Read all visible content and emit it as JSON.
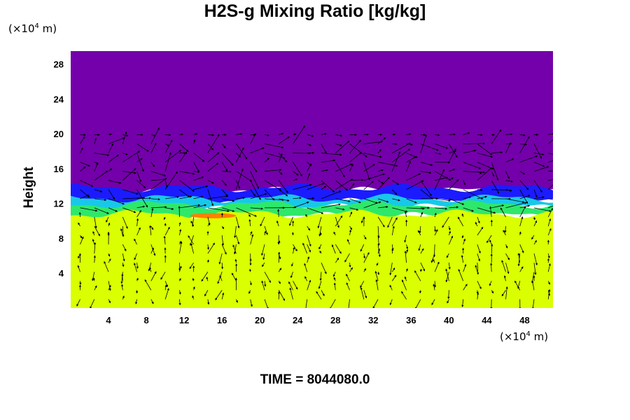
{
  "chart_data": {
    "type": "heatmap",
    "title": "H2S-g Mixing Ratio [kg/kg]",
    "ylabel": "Height",
    "xlabel": "",
    "x_unit": {
      "prefix": "(×10",
      "exp": "4",
      "suffix": " m)"
    },
    "y_unit": {
      "prefix": "(×10",
      "exp": "4",
      "suffix": " m)"
    },
    "xlim": [
      0,
      51
    ],
    "ylim": [
      0,
      29.5
    ],
    "x_ticks": [
      4,
      8,
      12,
      16,
      20,
      24,
      28,
      32,
      36,
      40,
      44,
      48
    ],
    "y_ticks": [
      4,
      8,
      12,
      16,
      20,
      24,
      28
    ],
    "layers": [
      {
        "name": "upper",
        "y_range": [
          13.5,
          29.5
        ],
        "color": "#7300aa"
      },
      {
        "name": "transition-blue",
        "y_range": [
          12.2,
          13.8
        ],
        "color": "#1b1bff"
      },
      {
        "name": "transition-cyan",
        "y_range": [
          11.6,
          12.6
        ],
        "color": "#18c8e8"
      },
      {
        "name": "transition-green",
        "y_range": [
          10.6,
          11.9
        ],
        "color": "#2ee86a"
      },
      {
        "name": "lower",
        "y_range": [
          0,
          10.8
        ],
        "color": "#d9ff00"
      }
    ],
    "hotspot": {
      "x": [
        12.6,
        17.5
      ],
      "y": [
        10.3,
        10.9
      ],
      "color": "#ff8000"
    },
    "vector_field": true,
    "grid": false,
    "time_label": "TIME = 8044080.0"
  }
}
